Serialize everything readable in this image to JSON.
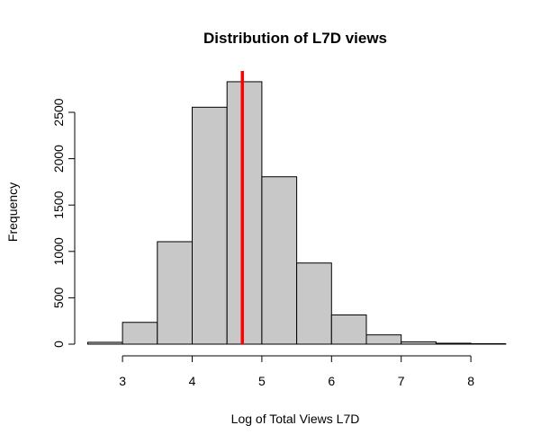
{
  "chart_data": {
    "type": "bar",
    "subtype": "histogram",
    "title": "Distribution of L7D views",
    "xlabel": "Log of Total Views L7D",
    "ylabel": "Frequency",
    "bin_edges": [
      2.5,
      3.0,
      3.5,
      4.0,
      4.5,
      5.0,
      5.5,
      6.0,
      6.5,
      7.0,
      7.5,
      8.0,
      8.5
    ],
    "values": [
      20,
      235,
      1105,
      2555,
      2830,
      1805,
      875,
      315,
      100,
      25,
      10,
      5
    ],
    "xlim": [
      2.5,
      8.5
    ],
    "ylim": [
      0,
      2900
    ],
    "x_ticks": [
      "3",
      "4",
      "5",
      "6",
      "7",
      "8"
    ],
    "y_ticks": [
      "0",
      "500",
      "1000",
      "1500",
      "2000",
      "2500"
    ],
    "bar_fill": "#c8c8c8",
    "bar_stroke": "#000000",
    "reference_line": {
      "x": 4.72,
      "color": "#ff0000"
    },
    "grid": false,
    "legend": "none"
  }
}
